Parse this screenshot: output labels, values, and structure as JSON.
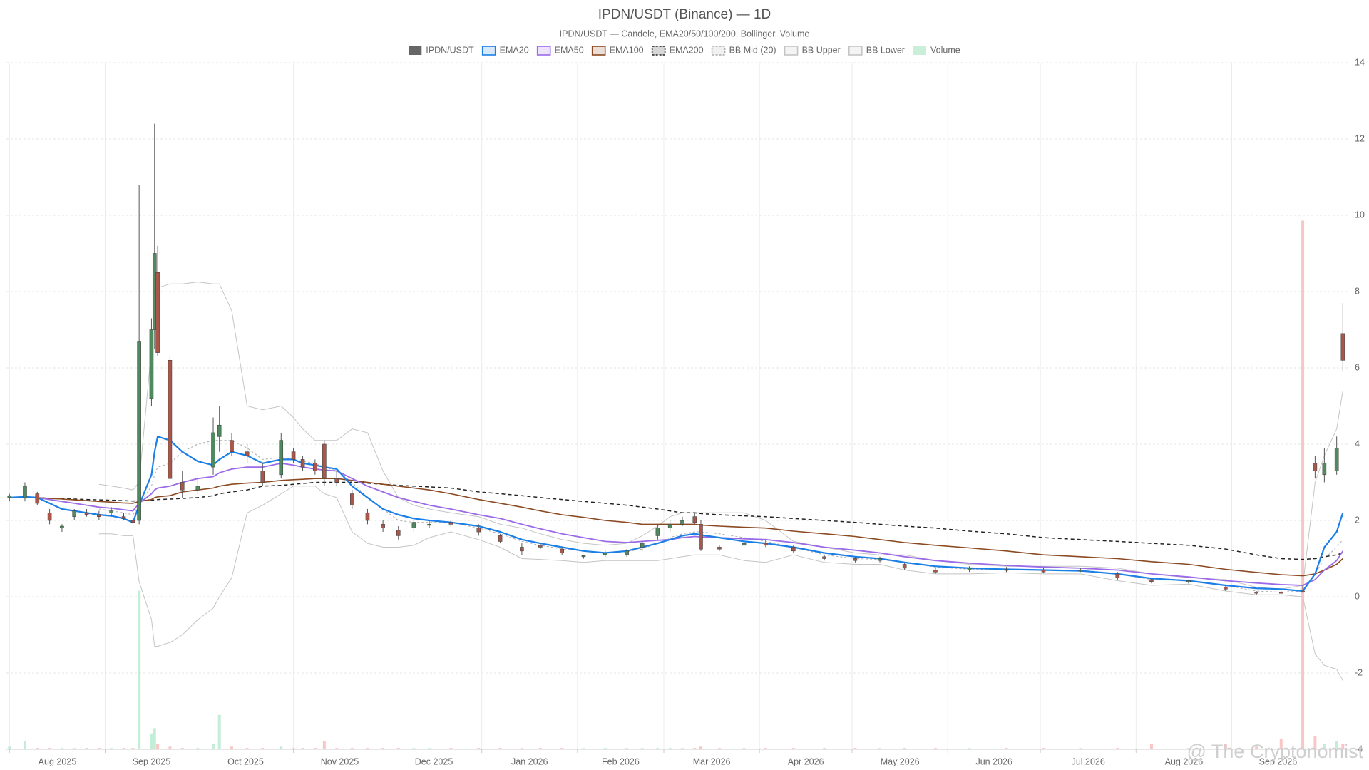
{
  "chart_data": {
    "type": "candlestick",
    "title": "IPDN/USDT (Binance) — 1D",
    "subtitle": "IPDN/USDT — Candele, EMA20/50/100/200, Bollinger, Volume",
    "name": "IPDN/USDT",
    "color": "#666666",
    "up_color": "#4f8a5f",
    "down_color": "#a9574a",
    "watermark": "@ The Cryptonomist",
    "x": [
      "2025-08-01",
      "2025-08-06",
      "2025-08-10",
      "2025-08-14",
      "2025-08-18",
      "2025-08-22",
      "2025-08-26",
      "2025-08-30",
      "2025-09-03",
      "2025-09-07",
      "2025-09-10",
      "2025-09-12",
      "2025-09-16",
      "2025-09-17",
      "2025-09-18",
      "2025-09-22",
      "2025-09-26",
      "2025-10-01",
      "2025-10-06",
      "2025-10-08",
      "2025-10-12",
      "2025-10-17",
      "2025-10-22",
      "2025-10-28",
      "2025-11-01",
      "2025-11-04",
      "2025-11-08",
      "2025-11-11",
      "2025-11-15",
      "2025-11-20",
      "2025-11-25",
      "2025-11-30",
      "2025-12-05",
      "2025-12-10",
      "2025-12-15",
      "2025-12-22",
      "2025-12-31",
      "2026-01-07",
      "2026-01-14",
      "2026-01-20",
      "2026-01-27",
      "2026-02-03",
      "2026-02-10",
      "2026-02-17",
      "2026-02-22",
      "2026-02-27",
      "2026-03-03",
      "2026-03-07",
      "2026-03-11",
      "2026-03-13",
      "2026-03-19",
      "2026-03-27",
      "2026-04-03",
      "2026-04-12",
      "2026-04-22",
      "2026-05-02",
      "2026-05-10",
      "2026-05-18",
      "2026-05-28",
      "2026-06-08",
      "2026-06-20",
      "2026-07-02",
      "2026-07-14",
      "2026-07-26",
      "2026-08-06",
      "2026-08-18",
      "2026-08-30",
      "2026-09-09",
      "2026-09-17",
      "2026-09-24",
      "2026-09-28",
      "2026-10-01",
      "2026-10-05",
      "2026-10-07"
    ],
    "open": [
      2.6,
      2.6,
      2.7,
      2.2,
      1.8,
      2.1,
      2.2,
      2.15,
      2.2,
      2.1,
      2.0,
      2.0,
      5.2,
      7.0,
      8.5,
      6.2,
      3.0,
      2.8,
      3.4,
      4.2,
      4.1,
      3.8,
      3.3,
      3.2,
      3.8,
      3.6,
      3.5,
      4.0,
      3.1,
      2.7,
      2.2,
      1.9,
      1.75,
      1.8,
      1.9,
      1.95,
      1.8,
      1.6,
      1.3,
      1.35,
      1.25,
      1.05,
      1.1,
      1.1,
      1.3,
      1.6,
      1.8,
      1.9,
      2.1,
      1.9,
      1.3,
      1.35,
      1.4,
      1.3,
      1.05,
      1.0,
      0.95,
      0.85,
      0.7,
      0.7,
      0.72,
      0.7,
      0.7,
      0.6,
      0.45,
      0.4,
      0.25,
      0.12,
      0.12,
      0.15,
      3.5,
      3.2,
      3.3,
      6.9
    ],
    "high": [
      2.7,
      3.0,
      2.75,
      2.3,
      1.9,
      2.3,
      2.3,
      2.25,
      2.35,
      2.2,
      2.1,
      10.8,
      7.3,
      12.4,
      9.2,
      6.3,
      3.3,
      3.1,
      4.7,
      5.0,
      4.3,
      4.0,
      3.5,
      4.3,
      3.9,
      3.7,
      3.6,
      4.1,
      3.3,
      2.8,
      2.3,
      2.0,
      1.85,
      2.0,
      2.0,
      2.0,
      1.9,
      1.65,
      1.4,
      1.4,
      1.3,
      1.1,
      1.2,
      1.25,
      1.45,
      1.9,
      2.0,
      2.1,
      2.2,
      2.0,
      1.35,
      1.45,
      1.5,
      1.35,
      1.1,
      1.05,
      1.05,
      0.9,
      0.75,
      0.8,
      0.78,
      0.75,
      0.75,
      0.65,
      0.5,
      0.45,
      0.3,
      0.15,
      0.15,
      0.3,
      3.7,
      3.9,
      4.2,
      7.7
    ],
    "low": [
      2.5,
      2.5,
      2.4,
      1.9,
      1.7,
      2.0,
      2.1,
      2.0,
      2.1,
      2.0,
      1.9,
      1.9,
      5.0,
      6.5,
      6.3,
      3.0,
      2.6,
      2.7,
      3.2,
      3.8,
      3.7,
      3.5,
      2.9,
      3.1,
      3.5,
      3.3,
      3.2,
      2.9,
      2.9,
      2.3,
      1.9,
      1.7,
      1.5,
      1.7,
      1.8,
      1.85,
      1.6,
      1.4,
      1.1,
      1.25,
      1.1,
      1.0,
      1.05,
      1.05,
      1.2,
      1.5,
      1.7,
      1.85,
      1.9,
      1.2,
      1.2,
      1.3,
      1.3,
      1.15,
      0.95,
      0.9,
      0.9,
      0.7,
      0.6,
      0.65,
      0.65,
      0.62,
      0.65,
      0.45,
      0.35,
      0.35,
      0.15,
      0.05,
      0.08,
      0.1,
      3.1,
      3.0,
      3.2,
      5.9
    ],
    "close": [
      2.65,
      2.9,
      2.45,
      2.0,
      1.85,
      2.25,
      2.15,
      2.1,
      2.25,
      2.05,
      1.95,
      6.7,
      7.0,
      9.0,
      6.4,
      3.1,
      2.8,
      2.9,
      4.3,
      4.5,
      3.8,
      3.7,
      3.0,
      4.1,
      3.6,
      3.4,
      3.3,
      3.1,
      3.0,
      2.4,
      2.0,
      1.8,
      1.6,
      1.95,
      1.9,
      1.9,
      1.7,
      1.45,
      1.2,
      1.3,
      1.15,
      1.08,
      1.15,
      1.2,
      1.4,
      1.8,
      1.9,
      2.0,
      1.95,
      1.25,
      1.25,
      1.4,
      1.35,
      1.2,
      1.0,
      0.95,
      1.0,
      0.75,
      0.65,
      0.75,
      0.7,
      0.65,
      0.7,
      0.5,
      0.4,
      0.42,
      0.2,
      0.1,
      0.1,
      0.12,
      3.3,
      3.5,
      3.9,
      6.2
    ],
    "volume": {
      "name": "Volume",
      "color": "#c9efd9",
      "color_up": "#b8ead0",
      "color_down": "#f8bcbc",
      "values": [
        1,
        3,
        0.5,
        0.5,
        0.5,
        0.5,
        0.5,
        0.5,
        0.5,
        0.5,
        0.5,
        60,
        6,
        8,
        2,
        1,
        0.5,
        0.5,
        2,
        13,
        1,
        0.5,
        0.5,
        1,
        0.5,
        0.5,
        0.5,
        3,
        0.5,
        0.5,
        0.5,
        0.5,
        0.5,
        0.5,
        0.5,
        0.5,
        0.5,
        0.5,
        0.5,
        0.5,
        0.5,
        0.5,
        0.5,
        0.5,
        0.5,
        0.5,
        0.5,
        0.5,
        0.5,
        1,
        0.5,
        0.5,
        0.5,
        0.5,
        0.5,
        0.5,
        0.5,
        0.5,
        0.5,
        0.5,
        0.5,
        0.5,
        0.5,
        0.5,
        2,
        0.5,
        2,
        1,
        4,
        200,
        5,
        2,
        3,
        2
      ]
    },
    "series": [
      {
        "name": "EMA20",
        "color": "#1a7fe6",
        "values": [
          2.6,
          2.62,
          2.6,
          2.45,
          2.3,
          2.25,
          2.2,
          2.15,
          2.12,
          2.05,
          1.95,
          2.4,
          3.2,
          3.8,
          4.2,
          4.1,
          3.8,
          3.55,
          3.45,
          3.6,
          3.8,
          3.7,
          3.5,
          3.6,
          3.6,
          3.5,
          3.45,
          3.4,
          3.35,
          2.9,
          2.6,
          2.3,
          2.15,
          2.05,
          2.0,
          1.95,
          1.85,
          1.7,
          1.5,
          1.4,
          1.3,
          1.2,
          1.15,
          1.2,
          1.3,
          1.4,
          1.5,
          1.6,
          1.65,
          1.62,
          1.55,
          1.45,
          1.4,
          1.3,
          1.15,
          1.05,
          1.0,
          0.9,
          0.8,
          0.75,
          0.72,
          0.7,
          0.68,
          0.6,
          0.48,
          0.42,
          0.3,
          0.22,
          0.2,
          0.15,
          0.6,
          1.3,
          1.7,
          2.2
        ]
      },
      {
        "name": "EMA50",
        "color": "#9b6ae8",
        "values": [
          2.6,
          2.6,
          2.6,
          2.55,
          2.5,
          2.45,
          2.4,
          2.35,
          2.32,
          2.28,
          2.25,
          2.45,
          2.7,
          2.8,
          2.85,
          2.9,
          3.0,
          3.1,
          3.15,
          3.25,
          3.35,
          3.4,
          3.4,
          3.5,
          3.45,
          3.4,
          3.35,
          3.32,
          3.3,
          3.1,
          2.9,
          2.75,
          2.6,
          2.5,
          2.4,
          2.3,
          2.15,
          2.05,
          1.9,
          1.78,
          1.65,
          1.55,
          1.45,
          1.42,
          1.45,
          1.48,
          1.5,
          1.55,
          1.58,
          1.57,
          1.55,
          1.52,
          1.5,
          1.42,
          1.3,
          1.22,
          1.15,
          1.05,
          0.95,
          0.88,
          0.82,
          0.78,
          0.75,
          0.7,
          0.6,
          0.52,
          0.42,
          0.36,
          0.32,
          0.3,
          0.45,
          0.7,
          0.95,
          1.2
        ]
      },
      {
        "name": "EMA100",
        "color": "#8b4a22",
        "values": [
          2.6,
          2.6,
          2.6,
          2.58,
          2.56,
          2.54,
          2.52,
          2.5,
          2.48,
          2.46,
          2.45,
          2.5,
          2.55,
          2.6,
          2.62,
          2.65,
          2.75,
          2.8,
          2.85,
          2.9,
          2.95,
          2.98,
          3.0,
          3.05,
          3.07,
          3.08,
          3.1,
          3.1,
          3.1,
          3.05,
          3.0,
          2.95,
          2.9,
          2.85,
          2.8,
          2.7,
          2.55,
          2.45,
          2.35,
          2.25,
          2.15,
          2.08,
          2.0,
          1.95,
          1.9,
          1.9,
          1.9,
          1.9,
          1.9,
          1.88,
          1.85,
          1.82,
          1.8,
          1.72,
          1.65,
          1.58,
          1.5,
          1.42,
          1.35,
          1.28,
          1.2,
          1.1,
          1.05,
          1.0,
          0.92,
          0.85,
          0.72,
          0.64,
          0.58,
          0.55,
          0.6,
          0.7,
          0.85,
          1.0
        ]
      },
      {
        "name": "EMA200",
        "color": "#222222",
        "dash": true,
        "values": [
          2.6,
          2.6,
          2.6,
          2.58,
          2.57,
          2.56,
          2.55,
          2.54,
          2.53,
          2.52,
          2.51,
          2.52,
          2.53,
          2.54,
          2.55,
          2.56,
          2.58,
          2.6,
          2.65,
          2.7,
          2.75,
          2.8,
          2.9,
          2.92,
          2.95,
          2.97,
          3.0,
          3.0,
          3.0,
          3.0,
          2.98,
          2.95,
          2.92,
          2.9,
          2.88,
          2.85,
          2.75,
          2.7,
          2.65,
          2.6,
          2.55,
          2.5,
          2.45,
          2.4,
          2.35,
          2.3,
          2.25,
          2.2,
          2.2,
          2.18,
          2.15,
          2.12,
          2.1,
          2.05,
          2.0,
          1.95,
          1.9,
          1.85,
          1.8,
          1.72,
          1.65,
          1.55,
          1.5,
          1.45,
          1.4,
          1.35,
          1.25,
          1.1,
          1.0,
          0.98,
          1.0,
          1.05,
          1.1,
          1.15
        ]
      },
      {
        "name": "BB Mid (20)",
        "color": "#aaaaaa",
        "dash": true,
        "values": [
          null,
          null,
          null,
          null,
          null,
          null,
          null,
          2.3,
          2.25,
          2.2,
          2.15,
          2.4,
          2.9,
          3.2,
          3.4,
          3.5,
          3.8,
          4.0,
          4.1,
          4.1,
          4.1,
          3.9,
          3.6,
          3.65,
          3.6,
          3.55,
          3.5,
          3.4,
          3.3,
          3.0,
          2.6,
          2.3,
          2.0,
          1.95,
          1.95,
          1.95,
          1.8,
          1.65,
          1.45,
          1.35,
          1.25,
          1.2,
          1.15,
          1.18,
          1.25,
          1.4,
          1.55,
          1.65,
          1.7,
          1.7,
          1.65,
          1.55,
          1.45,
          1.3,
          1.1,
          1.0,
          0.98,
          0.9,
          0.78,
          0.72,
          0.72,
          0.7,
          0.7,
          0.6,
          0.45,
          0.42,
          0.3,
          0.15,
          0.12,
          0.15,
          0.6,
          1.0,
          1.3,
          1.5
        ]
      },
      {
        "name": "BB Upper",
        "color": "#c4c4c4",
        "values": [
          null,
          null,
          null,
          null,
          null,
          null,
          null,
          2.95,
          2.9,
          2.85,
          2.8,
          3.0,
          6.5,
          7.5,
          8.1,
          8.2,
          8.2,
          8.25,
          8.2,
          8.2,
          7.5,
          5.0,
          4.9,
          5.0,
          4.7,
          4.4,
          4.1,
          4.1,
          4.1,
          4.4,
          4.3,
          3.3,
          2.6,
          2.4,
          2.3,
          2.2,
          2.1,
          1.9,
          1.8,
          1.65,
          1.5,
          1.4,
          1.35,
          1.4,
          1.6,
          1.85,
          2.1,
          2.2,
          2.2,
          2.2,
          2.2,
          2.2,
          2.0,
          1.45,
          1.3,
          1.15,
          1.1,
          1.1,
          0.95,
          0.85,
          0.8,
          0.8,
          0.8,
          0.75,
          0.6,
          0.5,
          0.45,
          0.25,
          0.2,
          0.3,
          3.0,
          3.7,
          4.4,
          5.4
        ]
      },
      {
        "name": "BB Lower",
        "color": "#c4c4c4",
        "values": [
          null,
          null,
          null,
          null,
          null,
          null,
          null,
          1.65,
          1.65,
          1.6,
          1.6,
          0.4,
          -0.6,
          -1.3,
          -1.3,
          -1.2,
          -1.0,
          -0.6,
          -0.3,
          0.0,
          0.5,
          2.2,
          2.4,
          2.7,
          2.9,
          2.9,
          2.9,
          2.7,
          2.6,
          1.7,
          1.4,
          1.3,
          1.3,
          1.35,
          1.55,
          1.7,
          1.5,
          1.3,
          1.0,
          0.98,
          0.95,
          0.9,
          0.95,
          0.95,
          0.95,
          0.95,
          1.0,
          1.05,
          1.1,
          1.1,
          1.1,
          0.95,
          0.9,
          1.1,
          0.9,
          0.85,
          0.85,
          0.7,
          0.6,
          0.6,
          0.63,
          0.6,
          0.6,
          0.42,
          0.3,
          0.33,
          0.15,
          0.05,
          0.05,
          0.0,
          -1.5,
          -1.8,
          -1.9,
          -2.2
        ]
      }
    ],
    "xlim": [
      "2025-07-31",
      "2026-10-09"
    ],
    "xticks": [
      {
        "value": "2025-08-01",
        "label": "Aug 2025"
      },
      {
        "value": "2025-09-01",
        "label": "Sep 2025"
      },
      {
        "value": "2025-10-01",
        "label": "Oct 2025"
      },
      {
        "value": "2025-11-01",
        "label": "Nov 2025"
      },
      {
        "value": "2025-12-01",
        "label": "Dec 2025"
      },
      {
        "value": "2026-01-01",
        "label": "Jan 2026"
      },
      {
        "value": "2026-02-01",
        "label": "Feb 2026"
      },
      {
        "value": "2026-03-01",
        "label": "Mar 2026"
      },
      {
        "value": "2026-04-01",
        "label": "Apr 2026"
      },
      {
        "value": "2026-05-01",
        "label": "May 2026"
      },
      {
        "value": "2026-06-01",
        "label": "Jun 2026"
      },
      {
        "value": "2026-07-01",
        "label": "Jul 2026"
      },
      {
        "value": "2026-08-01",
        "label": "Aug 2026"
      },
      {
        "value": "2026-09-01",
        "label": "Sep 2026"
      }
    ],
    "ylim": [
      -4,
      14
    ],
    "yticks": [
      -4,
      -2,
      0,
      2,
      4,
      6,
      8,
      10,
      12,
      14
    ],
    "grid": true
  }
}
